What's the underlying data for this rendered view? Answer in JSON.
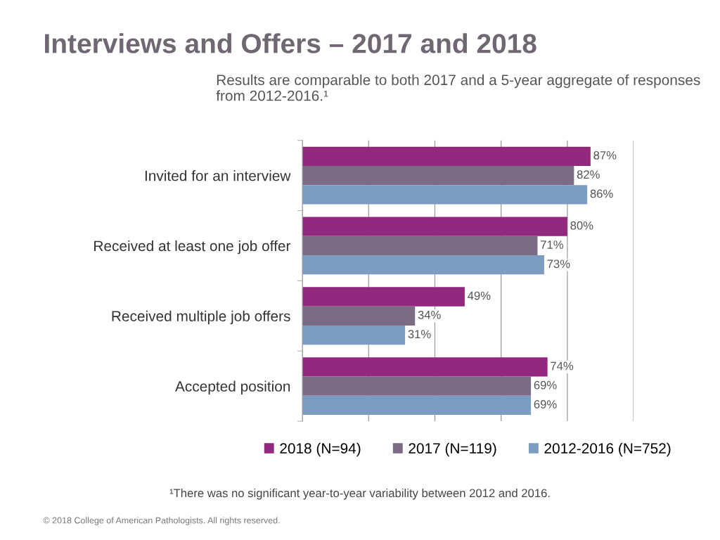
{
  "chart_data": {
    "type": "bar",
    "orientation": "horizontal",
    "title": "Interviews and Offers – 2017 and 2018",
    "subtitle": "Results are comparable to both 2017 and a 5-year aggregate of responses from 2012-2016.¹",
    "categories": [
      "Invited for an interview",
      "Received at least one job offer",
      "Received multiple job offers",
      "Accepted position"
    ],
    "series": [
      {
        "name": "2018 (N=94)",
        "color": "#93287f",
        "values": [
          87,
          80,
          49,
          74
        ],
        "value_labels": [
          "87%",
          "80%",
          "49%",
          "74%"
        ]
      },
      {
        "name": "2017 (N=119)",
        "color": "#7b6b84",
        "values": [
          82,
          71,
          34,
          69
        ],
        "value_labels": [
          "82%",
          "71%",
          "34%",
          "69%"
        ]
      },
      {
        "name": "2012-2016 (N=752)",
        "color": "#7d9cc2",
        "values": [
          86,
          73,
          31,
          69
        ],
        "value_labels": [
          "86%",
          "73%",
          "31%",
          "69%"
        ]
      }
    ],
    "xlim": [
      0,
      100
    ],
    "xticks": [
      {
        "value": 0,
        "label": null
      },
      {
        "value": 20,
        "label": null
      },
      {
        "value": 40,
        "label": null
      },
      {
        "value": 60,
        "label": null
      },
      {
        "value": 80,
        "label": null
      },
      {
        "value": 100,
        "label": null
      }
    ],
    "grid": "x",
    "legend": "bottom",
    "tick_labels": "y",
    "annotations": [
      "¹There was no significant year-to-year variability between 2012 and 2016.",
      "© 2018 College of American Pathologists. All rights reserved."
    ]
  }
}
